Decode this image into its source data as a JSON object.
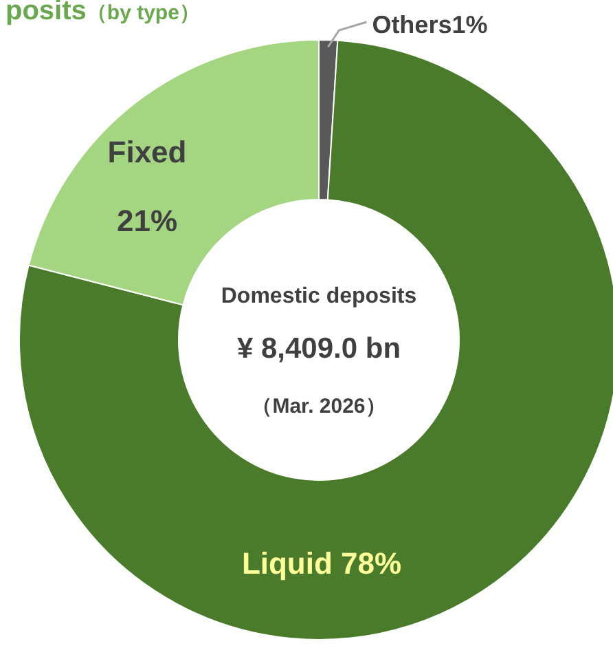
{
  "chart_data": {
    "type": "donut",
    "title": "posits（by type）",
    "categories": [
      "Others",
      "Liquid",
      "Fixed"
    ],
    "values": [
      1,
      78,
      21
    ],
    "value_labels": [
      "1%",
      "78%",
      "21%"
    ],
    "colors": [
      "#595959",
      "#4a7b2b",
      "#a4d580"
    ],
    "annotations": [
      "Domestic deposits",
      "¥ 8,409.0 bn",
      "（Mar. 2026）"
    ]
  }
}
